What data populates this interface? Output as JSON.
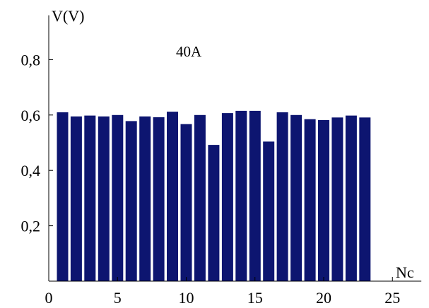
{
  "chart_data": {
    "type": "bar",
    "annotation": "40A",
    "xlabel": "Nc",
    "ylabel": "V(V)",
    "xlim": [
      0,
      27
    ],
    "ylim": [
      0,
      0.96
    ],
    "x_ticks": [
      0,
      5,
      10,
      15,
      20,
      25
    ],
    "x_tick_labels": [
      "0",
      "5",
      "10",
      "15",
      "20",
      "25"
    ],
    "y_ticks": [
      0.2,
      0.4,
      0.6,
      0.8
    ],
    "y_tick_labels": [
      "0,2",
      "0,4",
      "0,6",
      "0,8"
    ],
    "grid": false,
    "bar_color": "#0d1570",
    "x": [
      1,
      2,
      3,
      4,
      5,
      6,
      7,
      8,
      9,
      10,
      11,
      12,
      13,
      14,
      15,
      16,
      17,
      18,
      19,
      20,
      21,
      22,
      23
    ],
    "values": [
      0.61,
      0.595,
      0.598,
      0.595,
      0.6,
      0.578,
      0.595,
      0.592,
      0.612,
      0.567,
      0.6,
      0.492,
      0.607,
      0.615,
      0.615,
      0.504,
      0.61,
      0.6,
      0.585,
      0.582,
      0.591,
      0.598,
      0.591
    ]
  }
}
